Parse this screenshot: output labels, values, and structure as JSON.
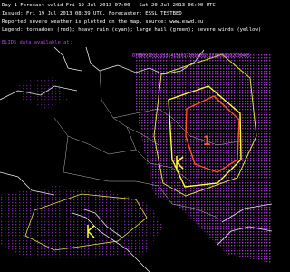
{
  "header": {
    "lines": [
      "Day 1 Forecast valid Fri 19 Jul 2013 07:00 - Sat 20 Jul 2013 06:00 UTC",
      "Issued: Fri 19 Jul 2013 08:39 UTC, Forecaster: ESSL TESTBED",
      "Reported severe weather is plotted on the map, source: www.eswd.eu",
      "Legend: tornadoes (red); heavy rain (cyan); large hail (green); severe winds (yellow)"
    ]
  },
  "lightning": {
    "source": "BLIDS data available at:",
    "hours": "0708091011121314151617181920212223000102030405"
  },
  "map": {
    "level_labels": [
      "1"
    ]
  }
}
